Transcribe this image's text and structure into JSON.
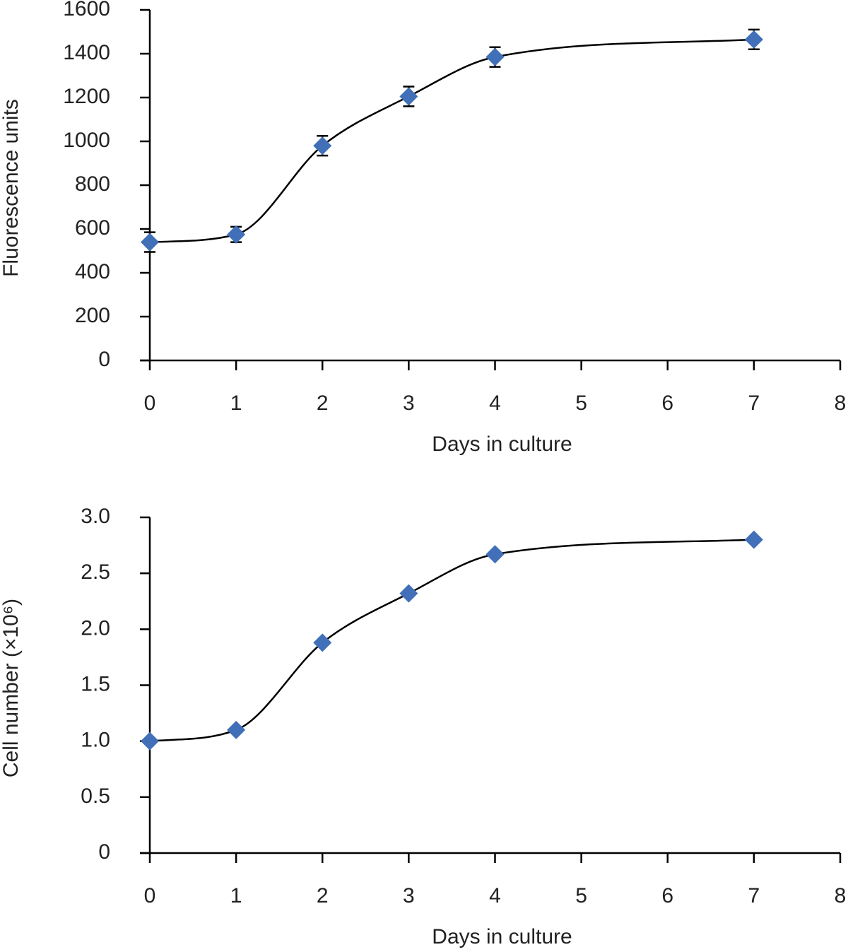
{
  "chart_data": [
    {
      "type": "line",
      "smooth": true,
      "x_label": "Days in culture",
      "y_label": "Fluorescence units",
      "x": [
        0,
        1,
        2,
        3,
        4,
        7
      ],
      "series": [
        {
          "color": "#4170b8",
          "values": [
            540,
            575,
            980,
            1205,
            1385,
            1465
          ],
          "errors": [
            45,
            35,
            45,
            45,
            45,
            45
          ]
        }
      ],
      "xlim": [
        0,
        8
      ],
      "xticks": [
        0,
        1,
        2,
        3,
        4,
        5,
        6,
        7,
        8
      ],
      "ylim": [
        0,
        1600
      ],
      "yticks": [
        0,
        200,
        400,
        600,
        800,
        1000,
        1200,
        1400,
        1600
      ]
    },
    {
      "type": "line",
      "smooth": true,
      "x_label": "Days in culture",
      "y_label": "Cell number (×10⁶)",
      "x": [
        0,
        1,
        2,
        3,
        4,
        7
      ],
      "series": [
        {
          "color": "#4170b8",
          "values": [
            1.0,
            1.1,
            1.88,
            2.32,
            2.67,
            2.8
          ]
        }
      ],
      "xlim": [
        0,
        8
      ],
      "xticks": [
        0,
        1,
        2,
        3,
        4,
        5,
        6,
        7,
        8
      ],
      "ylim": [
        0,
        3
      ],
      "yticks": [
        0,
        0.5,
        {
          "value": 1,
          "label": "1.0"
        },
        1.5,
        {
          "value": 2,
          "label": "2.0"
        },
        2.5,
        {
          "value": 3,
          "label": "3.0"
        }
      ]
    }
  ]
}
